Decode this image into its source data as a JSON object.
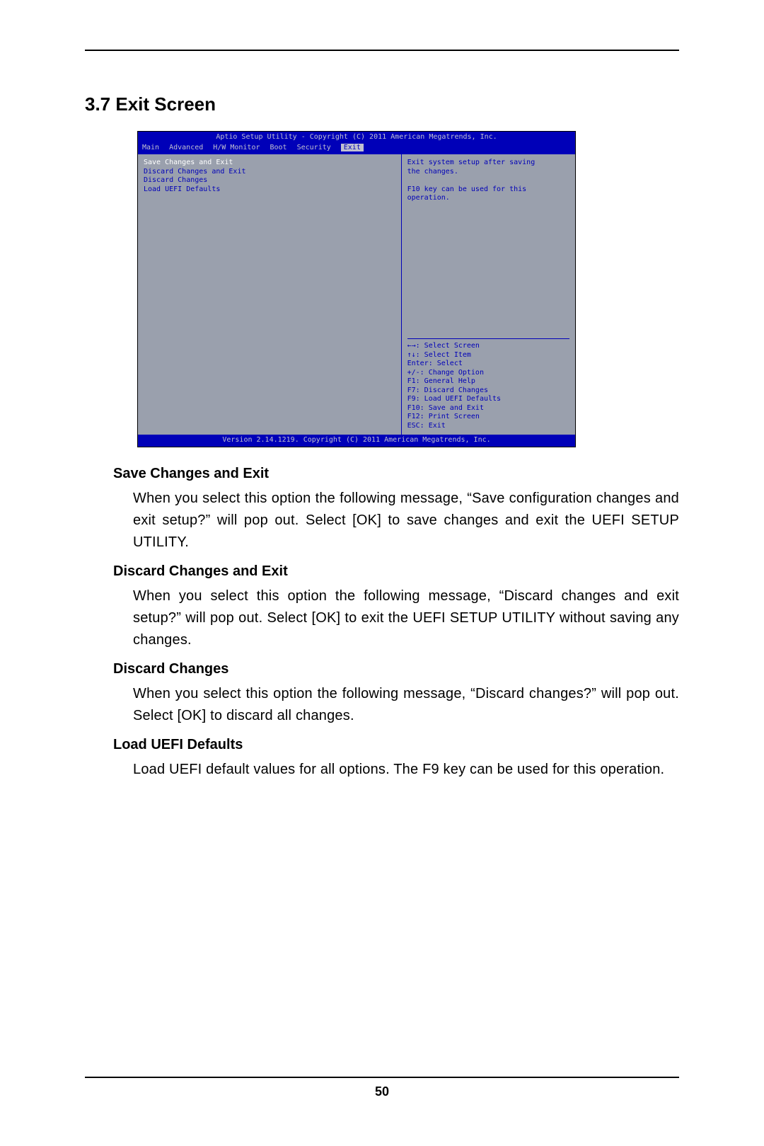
{
  "heading": "3.7  Exit Screen",
  "page_number": "50",
  "bios": {
    "title": "Aptio Setup Utility - Copyright (C) 2011 American Megatrends, Inc.",
    "footer": "Version 2.14.1219. Copyright (C) 2011 American Megatrends, Inc.",
    "tabs": [
      "Main",
      "Advanced",
      "H/W Monitor",
      "Boot",
      "Security",
      "Exit"
    ],
    "active_tab_index": 5,
    "menu_items": [
      "Save Changes and Exit",
      "Discard Changes and Exit",
      "Discard Changes",
      "Load UEFI Defaults"
    ],
    "selected_menu_index": 0,
    "help_lines": [
      "Exit system setup after saving",
      "the changes.",
      "",
      "F10 key can be used for this",
      "operation."
    ],
    "key_lines": [
      "←→: Select Screen",
      "↑↓: Select Item",
      "Enter: Select",
      "+/-: Change Option",
      "F1: General Help",
      "F7: Discard Changes",
      "F9: Load UEFI Defaults",
      "F10: Save and Exit",
      "F12: Print Screen",
      "ESC: Exit"
    ],
    "colors": {
      "bar_bg": "#0000b8",
      "bar_fg": "#c0c0d0",
      "body_bg": "#9aa0ad",
      "body_fg": "#0000b8",
      "selected_fg": "#ffffff"
    }
  },
  "descriptions": [
    {
      "title": "Save Changes and Exit",
      "body": "When you select this option the following message, “Save configuration changes and exit setup?” will pop out. Select [OK] to save changes and exit the UEFI SETUP UTILITY."
    },
    {
      "title": "Discard Changes and Exit",
      "body": "When you select this option the following message, “Discard changes and exit setup?” will pop out. Select [OK] to exit the UEFI SETUP UTILITY without saving any changes."
    },
    {
      "title": "Discard Changes",
      "body": "When you select this option the following message, “Discard changes?” will pop out. Select [OK] to discard all changes."
    },
    {
      "title": "Load UEFI Defaults",
      "body": "Load UEFI default values for all options. The F9 key can be used for this operation."
    }
  ]
}
